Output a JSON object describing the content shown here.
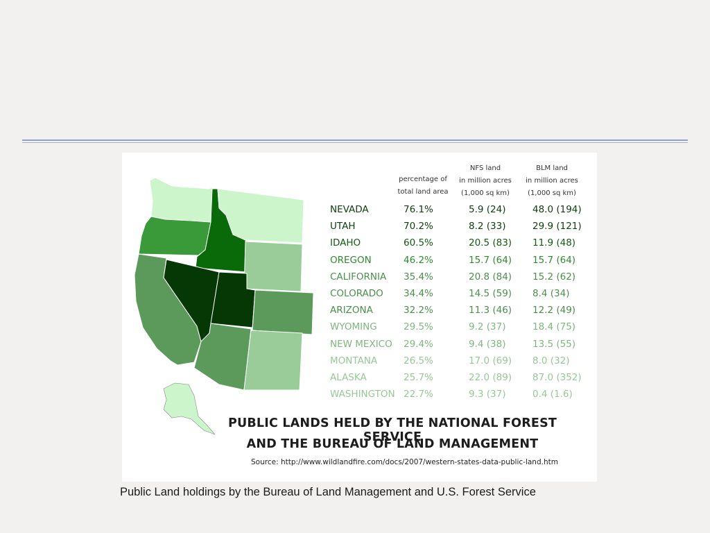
{
  "headers": {
    "pct": "percentage of\ntotal land area",
    "nfs": "NFS land\nin million acres\n(1,000 sq km)",
    "blm": "BLM land\nin million acres\n(1,000 sq km)"
  },
  "rows": [
    {
      "state": "NEVADA",
      "pct": "76.1%",
      "nfs": "5.9 (24)",
      "blm": "48.0 (194)",
      "color": "#0e3d0e"
    },
    {
      "state": "UTAH",
      "pct": "70.2%",
      "nfs": "8.2 (33)",
      "blm": "29.9 (121)",
      "color": "#0e3d0e"
    },
    {
      "state": "IDAHO",
      "pct": "60.5%",
      "nfs": "20.5 (83)",
      "blm": "11.9 (48)",
      "color": "#0f5a0f"
    },
    {
      "state": "OREGON",
      "pct": "46.2%",
      "nfs": "15.7 (64)",
      "blm": "15.7 (64)",
      "color": "#2f8a2f"
    },
    {
      "state": "CALIFORNIA",
      "pct": "35.4%",
      "nfs": "20.8 (84)",
      "blm": "15.2 (62)",
      "color": "#4a8f4a"
    },
    {
      "state": "COLORADO",
      "pct": "34.4%",
      "nfs": "14.5 (59)",
      "blm": "8.4 (34)",
      "color": "#4a8f4a"
    },
    {
      "state": "ARIZONA",
      "pct": "32.2%",
      "nfs": "11.3 (46)",
      "blm": "12.2 (49)",
      "color": "#4a8f4a"
    },
    {
      "state": "WYOMING",
      "pct": "29.5%",
      "nfs": "9.2 (37)",
      "blm": "18.4 (75)",
      "color": "#7fb67f"
    },
    {
      "state": "NEW MEXICO",
      "pct": "29.4%",
      "nfs": "9.4 (38)",
      "blm": "13.5 (55)",
      "color": "#7fb67f"
    },
    {
      "state": "MONTANA",
      "pct": "26.5%",
      "nfs": "17.0 (69)",
      "blm": "8.0 (32)",
      "color": "#96c896"
    },
    {
      "state": "ALASKA",
      "pct": "25.7%",
      "nfs": "22.0 (89)",
      "blm": "87.0 (352)",
      "color": "#96c896"
    },
    {
      "state": "WASHINGTON",
      "pct": "22.7%",
      "nfs": "9.3 (37)",
      "blm": "0.4 (1.6)",
      "color": "#96c896"
    }
  ],
  "title_line1": "PUBLIC LANDS HELD BY THE NATIONAL FOREST SERVICE",
  "title_line2": "AND THE BUREAU OF LAND MANAGEMENT",
  "source": "Source: http://www.wildlandfire.com/docs/2007/western-states-data-public-land.htm",
  "caption": "Public Land  holdings by the Bureau of Land Management and U.S. Forest Service",
  "map_colors": {
    "washington": "#ccf5cc",
    "montana": "#ccf5cc",
    "alaska": "#ccf5cc",
    "oregon": "#3a9a3a",
    "idaho": "#0a6a0a",
    "wyoming": "#99cc99",
    "new_mexico": "#99cc99",
    "california": "#5c9a5c",
    "arizona": "#5c9a5c",
    "colorado": "#5c9a5c",
    "nevada": "#063806",
    "utah": "#063806"
  }
}
